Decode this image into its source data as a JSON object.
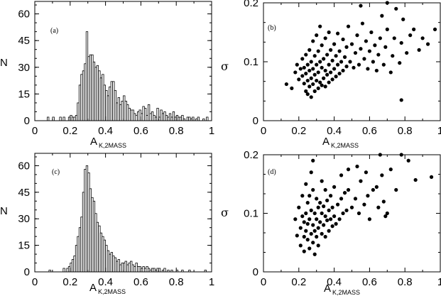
{
  "figure": {
    "background": "#ffffff",
    "ink": "#000000"
  },
  "chart_data": [
    {
      "type": "bar",
      "panel": "(a)",
      "xlabel": "A",
      "xlabel_sub": "K,2MASS",
      "ylabel": "N",
      "xlim": [
        0,
        1
      ],
      "ylim": [
        0,
        67
      ],
      "xticks": [
        "0",
        "0.2",
        "0.4",
        "0.6",
        "0.8",
        "1"
      ],
      "xtick_values": [
        0,
        0.2,
        0.4,
        0.6,
        0.8,
        1
      ],
      "yticks": [
        "0",
        "15",
        "30",
        "45",
        "60"
      ],
      "ytick_values": [
        0,
        15,
        30,
        45,
        60
      ],
      "bin_width": 0.01,
      "bins": [
        [
          0.07,
          2
        ],
        [
          0.1,
          2
        ],
        [
          0.14,
          2
        ],
        [
          0.16,
          2
        ],
        [
          0.19,
          2
        ],
        [
          0.2,
          3
        ],
        [
          0.21,
          2
        ],
        [
          0.22,
          2
        ],
        [
          0.23,
          3
        ],
        [
          0.24,
          10
        ],
        [
          0.25,
          20
        ],
        [
          0.26,
          26
        ],
        [
          0.27,
          28
        ],
        [
          0.28,
          32
        ],
        [
          0.29,
          50
        ],
        [
          0.3,
          36
        ],
        [
          0.31,
          37
        ],
        [
          0.32,
          37
        ],
        [
          0.33,
          33
        ],
        [
          0.34,
          30
        ],
        [
          0.35,
          31
        ],
        [
          0.36,
          28
        ],
        [
          0.37,
          24
        ],
        [
          0.38,
          26
        ],
        [
          0.39,
          20
        ],
        [
          0.4,
          17
        ],
        [
          0.41,
          14
        ],
        [
          0.42,
          19
        ],
        [
          0.43,
          22
        ],
        [
          0.44,
          22
        ],
        [
          0.45,
          17
        ],
        [
          0.46,
          10
        ],
        [
          0.47,
          13
        ],
        [
          0.48,
          9
        ],
        [
          0.49,
          11
        ],
        [
          0.5,
          14
        ],
        [
          0.51,
          11
        ],
        [
          0.52,
          9
        ],
        [
          0.53,
          7
        ],
        [
          0.54,
          6
        ],
        [
          0.55,
          6
        ],
        [
          0.56,
          4
        ],
        [
          0.57,
          3
        ],
        [
          0.58,
          5
        ],
        [
          0.59,
          6
        ],
        [
          0.6,
          4
        ],
        [
          0.61,
          8
        ],
        [
          0.62,
          7
        ],
        [
          0.63,
          3
        ],
        [
          0.64,
          9
        ],
        [
          0.65,
          4
        ],
        [
          0.66,
          5
        ],
        [
          0.67,
          3
        ],
        [
          0.68,
          2
        ],
        [
          0.69,
          7
        ],
        [
          0.7,
          2
        ],
        [
          0.71,
          6
        ],
        [
          0.72,
          4
        ],
        [
          0.73,
          5
        ],
        [
          0.74,
          3
        ],
        [
          0.75,
          2
        ],
        [
          0.76,
          4
        ],
        [
          0.77,
          2
        ],
        [
          0.78,
          5
        ],
        [
          0.79,
          2
        ],
        [
          0.8,
          3
        ],
        [
          0.81,
          2
        ],
        [
          0.82,
          2
        ],
        [
          0.83,
          3
        ],
        [
          0.84,
          1
        ],
        [
          0.86,
          2
        ],
        [
          0.87,
          2
        ],
        [
          0.88,
          1
        ],
        [
          0.89,
          2
        ],
        [
          0.91,
          1
        ],
        [
          0.92,
          2
        ],
        [
          0.95,
          1
        ],
        [
          0.97,
          2
        ]
      ]
    },
    {
      "type": "scatter",
      "panel": "(b)",
      "xlabel": "A",
      "xlabel_sub": "K,2MASS",
      "ylabel": "σ",
      "xlim": [
        0,
        1
      ],
      "ylim": [
        0,
        0.2
      ],
      "xticks": [
        "0",
        "0.2",
        "0.4",
        "0.6",
        "0.8",
        "1"
      ],
      "xtick_values": [
        0,
        0.2,
        0.4,
        0.6,
        0.8,
        1
      ],
      "yticks": [
        "0",
        "0.1",
        "0.2"
      ],
      "ytick_values": [
        0,
        0.1,
        0.2
      ],
      "points": [
        [
          0.13,
          0.062
        ],
        [
          0.16,
          0.055
        ],
        [
          0.18,
          0.082
        ],
        [
          0.19,
          0.095
        ],
        [
          0.2,
          0.07
        ],
        [
          0.21,
          0.088
        ],
        [
          0.22,
          0.076
        ],
        [
          0.22,
          0.105
        ],
        [
          0.23,
          0.063
        ],
        [
          0.23,
          0.09
        ],
        [
          0.24,
          0.05
        ],
        [
          0.24,
          0.08
        ],
        [
          0.24,
          0.112
        ],
        [
          0.25,
          0.045
        ],
        [
          0.25,
          0.068
        ],
        [
          0.25,
          0.095
        ],
        [
          0.26,
          0.058
        ],
        [
          0.26,
          0.085
        ],
        [
          0.26,
          0.12
        ],
        [
          0.27,
          0.04
        ],
        [
          0.27,
          0.072
        ],
        [
          0.27,
          0.1
        ],
        [
          0.28,
          0.062
        ],
        [
          0.28,
          0.088
        ],
        [
          0.28,
          0.135
        ],
        [
          0.29,
          0.05
        ],
        [
          0.29,
          0.078
        ],
        [
          0.29,
          0.11
        ],
        [
          0.3,
          0.068
        ],
        [
          0.3,
          0.095
        ],
        [
          0.3,
          0.145
        ],
        [
          0.31,
          0.055
        ],
        [
          0.31,
          0.082
        ],
        [
          0.31,
          0.118
        ],
        [
          0.32,
          0.065
        ],
        [
          0.32,
          0.1
        ],
        [
          0.32,
          0.16
        ],
        [
          0.33,
          0.06
        ],
        [
          0.33,
          0.09
        ],
        [
          0.33,
          0.128
        ],
        [
          0.34,
          0.072
        ],
        [
          0.34,
          0.105
        ],
        [
          0.35,
          0.058
        ],
        [
          0.35,
          0.085
        ],
        [
          0.35,
          0.14
        ],
        [
          0.36,
          0.078
        ],
        [
          0.36,
          0.112
        ],
        [
          0.37,
          0.065
        ],
        [
          0.37,
          0.095
        ],
        [
          0.37,
          0.15
        ],
        [
          0.38,
          0.082
        ],
        [
          0.38,
          0.12
        ],
        [
          0.39,
          0.07
        ],
        [
          0.39,
          0.102
        ],
        [
          0.4,
          0.088
        ],
        [
          0.4,
          0.13
        ],
        [
          0.41,
          0.075
        ],
        [
          0.41,
          0.11
        ],
        [
          0.42,
          0.095
        ],
        [
          0.42,
          0.148
        ],
        [
          0.43,
          0.08
        ],
        [
          0.43,
          0.118
        ],
        [
          0.44,
          0.1
        ],
        [
          0.45,
          0.085
        ],
        [
          0.45,
          0.138
        ],
        [
          0.46,
          0.108
        ],
        [
          0.47,
          0.092
        ],
        [
          0.47,
          0.125
        ],
        [
          0.48,
          0.16
        ],
        [
          0.49,
          0.1
        ],
        [
          0.5,
          0.13
        ],
        [
          0.51,
          0.09
        ],
        [
          0.52,
          0.115
        ],
        [
          0.53,
          0.145
        ],
        [
          0.54,
          0.095
        ],
        [
          0.55,
          0.122
        ],
        [
          0.56,
          0.165
        ],
        [
          0.57,
          0.105
        ],
        [
          0.58,
          0.135
        ],
        [
          0.59,
          0.088
        ],
        [
          0.6,
          0.118
        ],
        [
          0.61,
          0.15
        ],
        [
          0.62,
          0.1
        ],
        [
          0.63,
          0.128
        ],
        [
          0.64,
          0.085
        ],
        [
          0.65,
          0.112
        ],
        [
          0.66,
          0.14
        ],
        [
          0.67,
          0.178
        ],
        [
          0.68,
          0.095
        ],
        [
          0.69,
          0.125
        ],
        [
          0.7,
          0.155
        ],
        [
          0.72,
          0.082
        ],
        [
          0.73,
          0.11
        ],
        [
          0.74,
          0.14
        ],
        [
          0.75,
          0.19
        ],
        [
          0.77,
          0.098
        ],
        [
          0.78,
          0.035
        ],
        [
          0.78,
          0.132
        ],
        [
          0.79,
          0.172
        ],
        [
          0.81,
          0.115
        ],
        [
          0.83,
          0.145
        ],
        [
          0.85,
          0.155
        ],
        [
          0.88,
          0.12
        ],
        [
          0.9,
          0.14
        ],
        [
          0.93,
          0.13
        ],
        [
          0.97,
          0.155
        ],
        [
          0.55,
          0.195
        ],
        [
          0.7,
          0.2
        ]
      ]
    },
    {
      "type": "bar",
      "panel": "(c)",
      "xlabel": "A",
      "xlabel_sub": "K,2MASS",
      "ylabel": "N",
      "xlim": [
        0,
        1
      ],
      "ylim": [
        0,
        67
      ],
      "xticks": [
        "0",
        "0.2",
        "0.4",
        "0.6",
        "0.8",
        "1"
      ],
      "xtick_values": [
        0,
        0.2,
        0.4,
        0.6,
        0.8,
        1
      ],
      "yticks": [
        "0",
        "15",
        "30",
        "45",
        "60"
      ],
      "ytick_values": [
        0,
        15,
        30,
        45,
        60
      ],
      "bin_width": 0.01,
      "bins": [
        [
          0.08,
          1
        ],
        [
          0.16,
          2
        ],
        [
          0.18,
          2
        ],
        [
          0.19,
          3
        ],
        [
          0.2,
          5
        ],
        [
          0.21,
          7
        ],
        [
          0.22,
          9
        ],
        [
          0.23,
          15
        ],
        [
          0.24,
          20
        ],
        [
          0.25,
          25
        ],
        [
          0.26,
          31
        ],
        [
          0.27,
          45
        ],
        [
          0.28,
          58
        ],
        [
          0.29,
          60
        ],
        [
          0.3,
          56
        ],
        [
          0.31,
          47
        ],
        [
          0.32,
          42
        ],
        [
          0.33,
          40
        ],
        [
          0.34,
          33
        ],
        [
          0.35,
          28
        ],
        [
          0.36,
          26
        ],
        [
          0.37,
          22
        ],
        [
          0.38,
          20
        ],
        [
          0.39,
          18
        ],
        [
          0.4,
          15
        ],
        [
          0.41,
          12
        ],
        [
          0.42,
          10
        ],
        [
          0.43,
          11
        ],
        [
          0.44,
          9
        ],
        [
          0.45,
          8
        ],
        [
          0.46,
          6
        ],
        [
          0.47,
          7
        ],
        [
          0.48,
          4
        ],
        [
          0.49,
          5
        ],
        [
          0.5,
          5
        ],
        [
          0.51,
          6
        ],
        [
          0.52,
          4
        ],
        [
          0.53,
          5
        ],
        [
          0.54,
          6
        ],
        [
          0.55,
          4
        ],
        [
          0.56,
          3
        ],
        [
          0.57,
          5
        ],
        [
          0.58,
          3
        ],
        [
          0.59,
          3
        ],
        [
          0.6,
          2
        ],
        [
          0.61,
          3
        ],
        [
          0.62,
          2
        ],
        [
          0.63,
          3
        ],
        [
          0.64,
          2
        ],
        [
          0.65,
          1
        ],
        [
          0.66,
          2
        ],
        [
          0.67,
          2
        ],
        [
          0.68,
          1
        ],
        [
          0.69,
          2
        ],
        [
          0.7,
          2
        ],
        [
          0.72,
          1
        ],
        [
          0.73,
          2
        ],
        [
          0.75,
          1
        ],
        [
          0.77,
          1
        ],
        [
          0.8,
          1
        ],
        [
          0.83,
          1
        ],
        [
          0.87,
          1
        ],
        [
          0.96,
          1
        ]
      ]
    },
    {
      "type": "scatter",
      "panel": "(d)",
      "xlabel": "A",
      "xlabel_sub": "K,2MASS",
      "ylabel": "σ",
      "xlim": [
        0,
        1
      ],
      "ylim": [
        0,
        0.2
      ],
      "xticks": [
        "0",
        "0.2",
        "0.4",
        "0.6",
        "0.8",
        "1"
      ],
      "xtick_values": [
        0,
        0.2,
        0.4,
        0.6,
        0.8,
        1
      ],
      "yticks": [
        "0",
        "0.1",
        "0.2"
      ],
      "ytick_values": [
        0,
        0.1,
        0.2
      ],
      "points": [
        [
          0.18,
          0.09
        ],
        [
          0.19,
          0.062
        ],
        [
          0.2,
          0.11
        ],
        [
          0.21,
          0.075
        ],
        [
          0.21,
          0.045
        ],
        [
          0.22,
          0.095
        ],
        [
          0.22,
          0.13
        ],
        [
          0.23,
          0.06
        ],
        [
          0.23,
          0.085
        ],
        [
          0.23,
          0.035
        ],
        [
          0.24,
          0.1
        ],
        [
          0.24,
          0.07
        ],
        [
          0.24,
          0.15
        ],
        [
          0.25,
          0.055
        ],
        [
          0.25,
          0.082
        ],
        [
          0.25,
          0.118
        ],
        [
          0.26,
          0.04
        ],
        [
          0.26,
          0.09
        ],
        [
          0.26,
          0.13
        ],
        [
          0.27,
          0.065
        ],
        [
          0.27,
          0.105
        ],
        [
          0.27,
          0.17
        ],
        [
          0.28,
          0.05
        ],
        [
          0.28,
          0.08
        ],
        [
          0.28,
          0.14
        ],
        [
          0.28,
          0.19
        ],
        [
          0.29,
          0.07
        ],
        [
          0.29,
          0.1
        ],
        [
          0.29,
          0.03
        ],
        [
          0.3,
          0.06
        ],
        [
          0.3,
          0.09
        ],
        [
          0.3,
          0.125
        ],
        [
          0.31,
          0.075
        ],
        [
          0.31,
          0.11
        ],
        [
          0.31,
          0.045
        ],
        [
          0.32,
          0.085
        ],
        [
          0.32,
          0.118
        ],
        [
          0.33,
          0.065
        ],
        [
          0.33,
          0.1
        ],
        [
          0.33,
          0.155
        ],
        [
          0.34,
          0.08
        ],
        [
          0.34,
          0.112
        ],
        [
          0.35,
          0.06
        ],
        [
          0.35,
          0.095
        ],
        [
          0.35,
          0.14
        ],
        [
          0.36,
          0.088
        ],
        [
          0.36,
          0.122
        ],
        [
          0.37,
          0.07
        ],
        [
          0.37,
          0.105
        ],
        [
          0.38,
          0.09
        ],
        [
          0.38,
          0.13
        ],
        [
          0.39,
          0.078
        ],
        [
          0.39,
          0.11
        ],
        [
          0.4,
          0.095
        ],
        [
          0.4,
          0.145
        ],
        [
          0.41,
          0.082
        ],
        [
          0.42,
          0.115
        ],
        [
          0.43,
          0.09
        ],
        [
          0.44,
          0.125
        ],
        [
          0.45,
          0.1
        ],
        [
          0.46,
          0.135
        ],
        [
          0.47,
          0.105
        ],
        [
          0.48,
          0.14
        ],
        [
          0.5,
          0.11
        ],
        [
          0.52,
          0.125
        ],
        [
          0.54,
          0.1
        ],
        [
          0.55,
          0.155
        ],
        [
          0.57,
          0.115
        ],
        [
          0.59,
          0.13
        ],
        [
          0.6,
          0.09
        ],
        [
          0.62,
          0.14
        ],
        [
          0.65,
          0.11
        ],
        [
          0.66,
          0.2
        ],
        [
          0.67,
          0.165
        ],
        [
          0.68,
          0.12
        ],
        [
          0.69,
          0.095
        ],
        [
          0.7,
          0.1
        ],
        [
          0.72,
          0.175
        ],
        [
          0.75,
          0.14
        ],
        [
          0.78,
          0.2
        ],
        [
          0.82,
          0.19
        ],
        [
          0.86,
          0.157
        ],
        [
          0.95,
          0.162
        ],
        [
          0.64,
          0.145
        ],
        [
          0.58,
          0.17
        ],
        [
          0.53,
          0.18
        ],
        [
          0.48,
          0.175
        ],
        [
          0.44,
          0.165
        ]
      ]
    }
  ]
}
